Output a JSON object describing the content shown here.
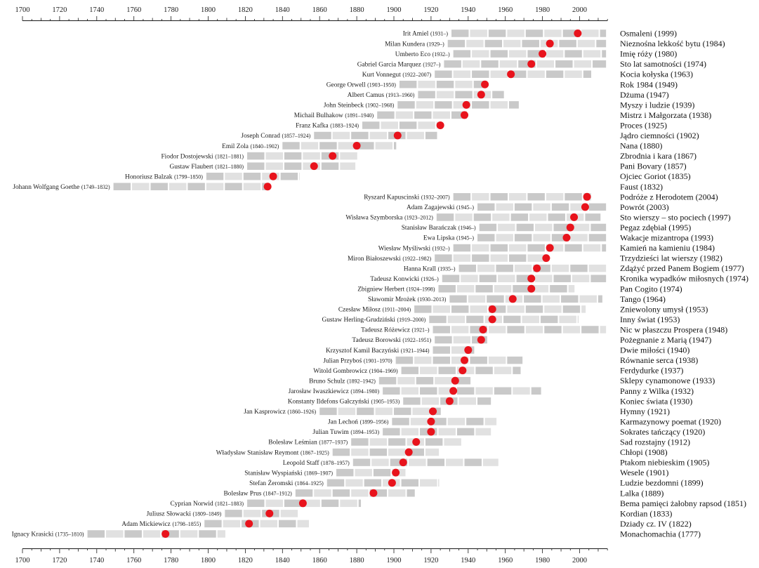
{
  "chart_data": {
    "type": "bar",
    "xlim": [
      1700,
      2015
    ],
    "x_ticks": [
      1700,
      1720,
      1740,
      1760,
      1780,
      1800,
      1820,
      1840,
      1860,
      1880,
      1900,
      1920,
      1940,
      1960,
      1980,
      2000
    ],
    "grid": false,
    "legend": false,
    "colors": {
      "dot": "#e8131c",
      "bar_dark": "#c9c9c9",
      "bar_light": "#e1e1e1",
      "axis": "#1a1a1a"
    },
    "rows": [
      {
        "author": "Irit Amiel",
        "lifespan": "(1931–)",
        "born": 1931,
        "died": null,
        "work": "Osmaleni (1999)",
        "work_year": 1999
      },
      {
        "author": "Milan Kundera",
        "lifespan": "(1929–)",
        "born": 1929,
        "died": null,
        "work": "Nieznośna lekkość bytu (1984)",
        "work_year": 1984
      },
      {
        "author": "Umberto Eco",
        "lifespan": "(1932–)",
        "born": 1932,
        "died": null,
        "work": "Imię róży (1980)",
        "work_year": 1980
      },
      {
        "author": "Gabriel Garcia Marquez",
        "lifespan": "(1927–)",
        "born": 1927,
        "died": null,
        "work": "Sto lat samotności (1974)",
        "work_year": 1974
      },
      {
        "author": "Kurt Vonnegut",
        "lifespan": "(1922–2007)",
        "born": 1922,
        "died": 2007,
        "work": "Kocia kołyska (1963)",
        "work_year": 1963
      },
      {
        "author": "George Orwell",
        "lifespan": "(1903–1950)",
        "born": 1903,
        "died": 1950,
        "work": "Rok 1984 (1949)",
        "work_year": 1949
      },
      {
        "author": "Albert Camus",
        "lifespan": "(1913–1960)",
        "born": 1913,
        "died": 1960,
        "work": "Dżuma (1947)",
        "work_year": 1947
      },
      {
        "author": "John Steinbeck",
        "lifespan": "(1902–1968)",
        "born": 1902,
        "died": 1968,
        "work": "Myszy i ludzie (1939)",
        "work_year": 1939
      },
      {
        "author": "Michail Bulhakow",
        "lifespan": "(1891–1940)",
        "born": 1891,
        "died": 1940,
        "work": "Mistrz i Małgorzata (1938)",
        "work_year": 1938
      },
      {
        "author": "Franz Kafka",
        "lifespan": "(1883–1924)",
        "born": 1883,
        "died": 1924,
        "work": "Proces (1925)",
        "work_year": 1925
      },
      {
        "author": "Joseph Conrad",
        "lifespan": "(1857–1924)",
        "born": 1857,
        "died": 1924,
        "work": "Jądro ciemności (1902)",
        "work_year": 1902
      },
      {
        "author": "Emil Zola",
        "lifespan": "(1840–1902)",
        "born": 1840,
        "died": 1902,
        "work": "Nana (1880)",
        "work_year": 1880
      },
      {
        "author": "Fiodor Dostojewski",
        "lifespan": "(1821–1881)",
        "born": 1821,
        "died": 1881,
        "work": "Zbrodnia i kara (1867)",
        "work_year": 1867
      },
      {
        "author": "Gustaw Flaubert",
        "lifespan": "(1821–1880)",
        "born": 1821,
        "died": 1880,
        "work": "Pani Bovary (1857)",
        "work_year": 1857
      },
      {
        "author": "Honoriusz Balzak",
        "lifespan": "(1799–1850)",
        "born": 1799,
        "died": 1850,
        "work": "Ojciec Goriot (1835)",
        "work_year": 1835
      },
      {
        "author": "Johann Wolfgang Goethe",
        "lifespan": "(1749–1832)",
        "born": 1749,
        "died": 1832,
        "work": "Faust (1832)",
        "work_year": 1832
      },
      {
        "author": "Ryszard Kapuscinski",
        "lifespan": "(1932–2007)",
        "born": 1932,
        "died": 2007,
        "work": "Podróże z Herodotem (2004)",
        "work_year": 2004
      },
      {
        "author": "Adam Zagajewski",
        "lifespan": "(1945–)",
        "born": 1945,
        "died": null,
        "work": "Powrót (2003)",
        "work_year": 2003
      },
      {
        "author": "Wisława Szymborska",
        "lifespan": "(1923–2012)",
        "born": 1923,
        "died": 2012,
        "work": "Sto wierszy – sto pociech (1997)",
        "work_year": 1997
      },
      {
        "author": "Stanisław Barańczak",
        "lifespan": "(1946–)",
        "born": 1946,
        "died": null,
        "work": "Pegaz zdębiał (1995)",
        "work_year": 1995
      },
      {
        "author": "Ewa Lipska",
        "lifespan": "(1945–)",
        "born": 1945,
        "died": null,
        "work": "Wakacje mizantropa (1993)",
        "work_year": 1993
      },
      {
        "author": "Wiesław Myśliwski",
        "lifespan": "(1932–)",
        "born": 1932,
        "died": null,
        "work": "Kamień na kamieniu (1984)",
        "work_year": 1984
      },
      {
        "author": "Miron Białoszewski",
        "lifespan": "(1922–1982)",
        "born": 1922,
        "died": 1982,
        "work": "Trzydzieści lat wierszy (1982)",
        "work_year": 1982
      },
      {
        "author": "Hanna Krall",
        "lifespan": "(1935–)",
        "born": 1935,
        "died": null,
        "work": "Zdążyć przed Panem Bogiem (1977)",
        "work_year": 1977
      },
      {
        "author": "Tadeusz Konwicki",
        "lifespan": "(1926–)",
        "born": 1926,
        "died": null,
        "work": "Kronika wypadków miłosnych (1974)",
        "work_year": 1974
      },
      {
        "author": "Zbigniew Herbert",
        "lifespan": "(1924–1998)",
        "born": 1924,
        "died": 1998,
        "work": "Pan Cogito (1974)",
        "work_year": 1974
      },
      {
        "author": "Sławomir Mrożek",
        "lifespan": "(1930–2013)",
        "born": 1930,
        "died": 2013,
        "work": "Tango (1964)",
        "work_year": 1964
      },
      {
        "author": "Czesław Miłosz",
        "lifespan": "(1911–2004)",
        "born": 1911,
        "died": 2004,
        "work": "Zniewolony umysł (1953)",
        "work_year": 1953
      },
      {
        "author": "Gustaw Herling-Grudziński",
        "lifespan": "(1919–2000)",
        "born": 1919,
        "died": 2000,
        "work": "Inny świat (1953)",
        "work_year": 1953
      },
      {
        "author": "Tadeusz Różewicz",
        "lifespan": "(1921–)",
        "born": 1921,
        "died": null,
        "work": "Nic w płaszczu Prospera (1948)",
        "work_year": 1948
      },
      {
        "author": "Tadeusz Borowski",
        "lifespan": "(1922–1951)",
        "born": 1922,
        "died": 1951,
        "work": "Pożegnanie z Marią (1947)",
        "work_year": 1947
      },
      {
        "author": "Krzysztof Kamil Baczyński",
        "lifespan": "(1921–1944)",
        "born": 1921,
        "died": 1944,
        "work": "Dwie miłości (1940)",
        "work_year": 1940
      },
      {
        "author": "Julian Przyboś",
        "lifespan": "(1901–1970)",
        "born": 1901,
        "died": 1970,
        "work": "Równanie serca (1938)",
        "work_year": 1938
      },
      {
        "author": "Witold Gombrowicz",
        "lifespan": "(1904–1969)",
        "born": 1904,
        "died": 1969,
        "work": "Ferdydurke (1937)",
        "work_year": 1937
      },
      {
        "author": "Bruno Schulz",
        "lifespan": "(1892–1942)",
        "born": 1892,
        "died": 1942,
        "work": "Sklepy cynamonowe (1933)",
        "work_year": 1933
      },
      {
        "author": "Jarosław Iwaszkiewicz",
        "lifespan": "(1894–1980)",
        "born": 1894,
        "died": 1980,
        "work": "Panny z Wilka (1932)",
        "work_year": 1932
      },
      {
        "author": "Konstanty Ildefons Gałczyński",
        "lifespan": "(1905–1953)",
        "born": 1905,
        "died": 1953,
        "work": "Koniec świata (1930)",
        "work_year": 1930
      },
      {
        "author": "Jan Kasprowicz",
        "lifespan": "(1860–1926)",
        "born": 1860,
        "died": 1926,
        "work": "Hymny (1921)",
        "work_year": 1921
      },
      {
        "author": "Jan Lechoń",
        "lifespan": "(1899–1956)",
        "born": 1899,
        "died": 1956,
        "work": "Karmazynowy poemat (1920)",
        "work_year": 1920
      },
      {
        "author": "Julian Tuwim",
        "lifespan": "(1894–1953)",
        "born": 1894,
        "died": 1953,
        "work": "Sokrates tańczący (1920)",
        "work_year": 1920
      },
      {
        "author": "Bolesław Leśmian",
        "lifespan": "(1877–1937)",
        "born": 1877,
        "died": 1937,
        "work": "Sad rozstajny (1912)",
        "work_year": 1912
      },
      {
        "author": "Władysław Stanisław Reymont",
        "lifespan": "(1867–1925)",
        "born": 1867,
        "died": 1925,
        "work": "Chłopi (1908)",
        "work_year": 1908
      },
      {
        "author": "Leopold Staff",
        "lifespan": "(1878–1957)",
        "born": 1878,
        "died": 1957,
        "work": "Ptakom niebieskim (1905)",
        "work_year": 1905
      },
      {
        "author": "Stanisław Wyspiański",
        "lifespan": "(1869–1907)",
        "born": 1869,
        "died": 1907,
        "work": "Wesele (1901)",
        "work_year": 1901
      },
      {
        "author": "Stefan Żeromski",
        "lifespan": "(1864–1925)",
        "born": 1864,
        "died": 1925,
        "work": "Ludzie bezdomni (1899)",
        "work_year": 1899
      },
      {
        "author": "Bolesław Prus",
        "lifespan": "(1847–1912)",
        "born": 1847,
        "died": 1912,
        "work": "Lalka (1889)",
        "work_year": 1889
      },
      {
        "author": "Cyprian Norwid",
        "lifespan": "(1821–1883)",
        "born": 1821,
        "died": 1883,
        "work": "Bema pamięci żałobny rapsod (1851)",
        "work_year": 1851
      },
      {
        "author": "Juliusz Słowacki",
        "lifespan": "(1809–1849)",
        "born": 1809,
        "died": 1849,
        "work": "Kordian (1833)",
        "work_year": 1833
      },
      {
        "author": "Adam Mickiewicz",
        "lifespan": "(1798–1855)",
        "born": 1798,
        "died": 1855,
        "work": "Dziady cz. IV (1822)",
        "work_year": 1822
      },
      {
        "author": "Ignacy Krasicki",
        "lifespan": "(1735–1810)",
        "born": 1735,
        "died": 1810,
        "work": "Monachomachia (1777)",
        "work_year": 1777
      }
    ]
  }
}
